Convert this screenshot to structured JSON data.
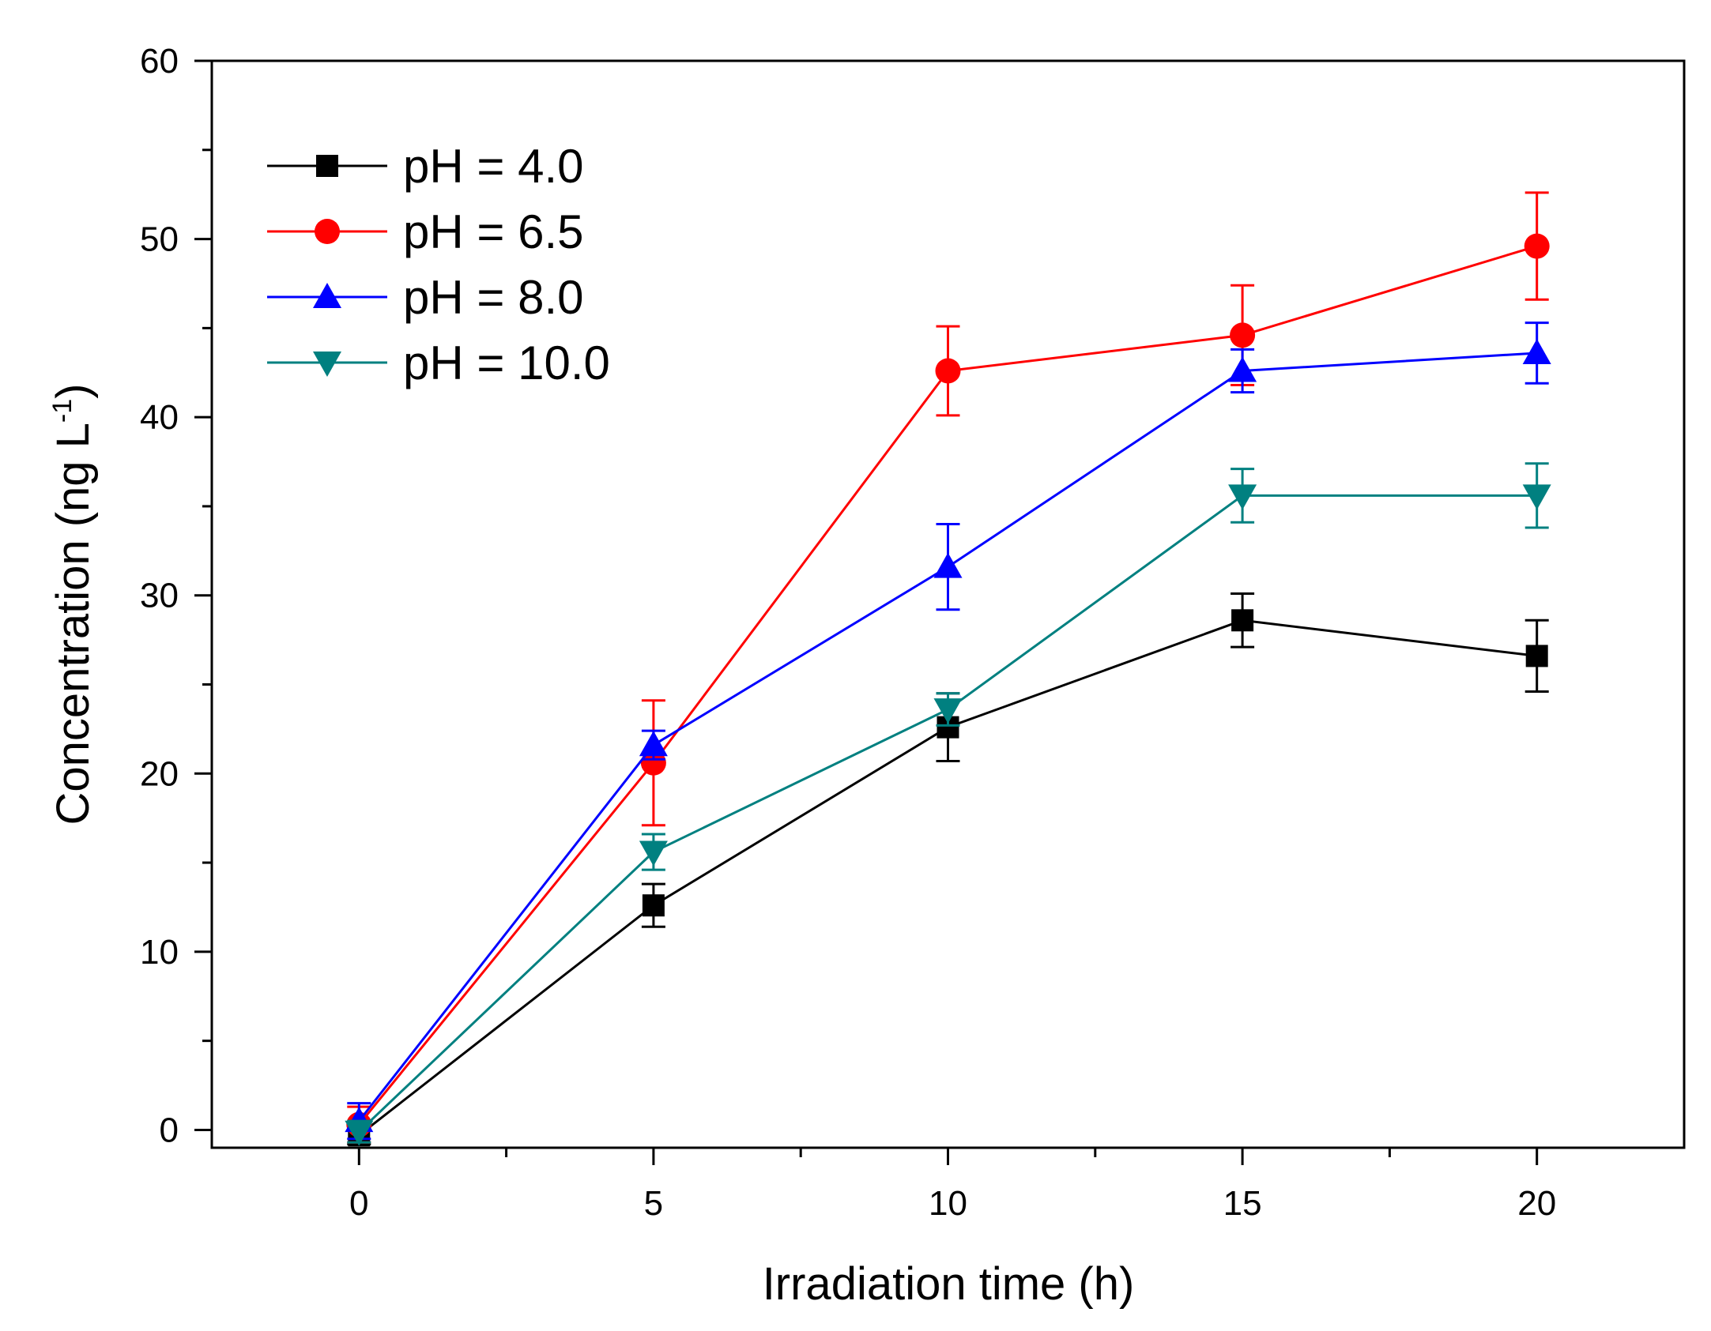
{
  "chart_data": {
    "type": "line",
    "title": "",
    "xlabel": "Irradiation time (h)",
    "ylabel": "Concentration (ng L",
    "ylabel_superscript": "-1",
    "ylabel_suffix": ")",
    "xlim": [
      -2.5,
      22.5
    ],
    "ylim": [
      -1,
      60
    ],
    "x": [
      0,
      5,
      10,
      15,
      20
    ],
    "x_ticks": [
      0,
      5,
      10,
      15,
      20
    ],
    "x_tick_labels": [
      "0",
      "5",
      "10",
      "15",
      "20"
    ],
    "y_ticks": [
      0,
      10,
      20,
      30,
      40,
      50,
      60
    ],
    "y_tick_labels": [
      "0",
      "10",
      "20",
      "30",
      "40",
      "50",
      "60"
    ],
    "grid": false,
    "legend_position": "top-left",
    "series": [
      {
        "name": "pH = 4.0",
        "color": "#000000",
        "marker": "square",
        "values": [
          -0.3,
          12.6,
          22.6,
          28.6,
          26.6
        ],
        "errors": [
          0.5,
          1.2,
          1.9,
          1.5,
          2.0
        ]
      },
      {
        "name": "pH = 6.5",
        "color": "#ff0000",
        "marker": "circle",
        "values": [
          0.3,
          20.6,
          42.6,
          44.6,
          49.6
        ],
        "errors": [
          1.0,
          3.5,
          2.5,
          2.8,
          3.0
        ]
      },
      {
        "name": "pH = 8.0",
        "color": "#0000ff",
        "marker": "triangle-up",
        "values": [
          0.5,
          21.6,
          31.6,
          42.6,
          43.6
        ],
        "errors": [
          1.0,
          0.8,
          2.4,
          1.2,
          1.7
        ]
      },
      {
        "name": "pH = 10.0",
        "color": "#008080",
        "marker": "triangle-down",
        "values": [
          -0.1,
          15.6,
          23.6,
          35.6,
          35.6
        ],
        "errors": [
          0.6,
          1.0,
          0.9,
          1.5,
          1.8
        ]
      }
    ]
  }
}
